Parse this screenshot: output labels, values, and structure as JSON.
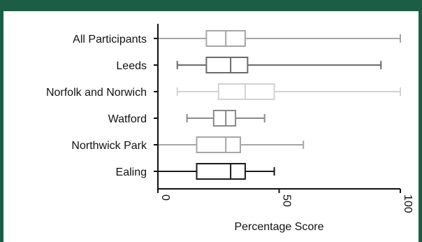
{
  "chart_data": {
    "type": "boxplot",
    "orientation": "horizontal",
    "xlabel": "Percentage Score",
    "xlim": [
      0,
      100
    ],
    "x_ticks": [
      0,
      50,
      100
    ],
    "x_tick_labels": [
      "0",
      "50",
      "100"
    ],
    "categories": [
      "All Participants",
      "Leeds",
      "Norfolk and Norwich",
      "Watford",
      "Northwick Park",
      "Ealing"
    ],
    "boxes": [
      {
        "category": "All Participants",
        "min": 0,
        "q1": 20,
        "median": 28,
        "q3": 36,
        "max": 100,
        "color": "#a6a6a6"
      },
      {
        "category": "Leeds",
        "min": 8,
        "q1": 20,
        "median": 30,
        "q3": 37,
        "max": 92,
        "color": "#6b6b6b"
      },
      {
        "category": "Norfolk and Norwich",
        "min": 8,
        "q1": 25,
        "median": 36,
        "q3": 48,
        "max": 100,
        "color": "#d2d2d2"
      },
      {
        "category": "Watford",
        "min": 12,
        "q1": 23,
        "median": 28,
        "q3": 32,
        "max": 44,
        "color": "#8a8a8a"
      },
      {
        "category": "Northwick Park",
        "min": 0,
        "q1": 16,
        "median": 28,
        "q3": 34,
        "max": 60,
        "color": "#a6a6a6"
      },
      {
        "category": "Ealing",
        "min": 0,
        "q1": 16,
        "median": 30,
        "q3": 36,
        "max": 48,
        "color": "#1a1a1a"
      }
    ],
    "grid": false,
    "colors": {
      "frame": "#1b5e45",
      "axis": "#111111"
    }
  }
}
